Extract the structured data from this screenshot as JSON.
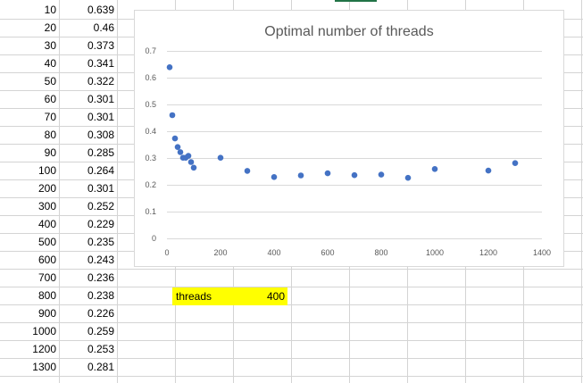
{
  "sheet": {
    "rows": [
      {
        "threads": "10",
        "value": "0.639"
      },
      {
        "threads": "20",
        "value": "0.46"
      },
      {
        "threads": "30",
        "value": "0.373"
      },
      {
        "threads": "40",
        "value": "0.341"
      },
      {
        "threads": "50",
        "value": "0.322"
      },
      {
        "threads": "60",
        "value": "0.301"
      },
      {
        "threads": "70",
        "value": "0.301"
      },
      {
        "threads": "80",
        "value": "0.308"
      },
      {
        "threads": "90",
        "value": "0.285"
      },
      {
        "threads": "100",
        "value": "0.264"
      },
      {
        "threads": "200",
        "value": "0.301"
      },
      {
        "threads": "300",
        "value": "0.252"
      },
      {
        "threads": "400",
        "value": "0.229"
      },
      {
        "threads": "500",
        "value": "0.235"
      },
      {
        "threads": "600",
        "value": "0.243"
      },
      {
        "threads": "700",
        "value": "0.236"
      },
      {
        "threads": "800",
        "value": "0.238"
      },
      {
        "threads": "900",
        "value": "0.226"
      },
      {
        "threads": "1000",
        "value": "0.259"
      },
      {
        "threads": "1200",
        "value": "0.253"
      },
      {
        "threads": "1300",
        "value": "0.281"
      }
    ],
    "highlight": {
      "label": "threads",
      "value": "400",
      "color": "#ffff00"
    },
    "selection_color": "#217346",
    "gridline_color": "#d4d4d4"
  },
  "chart_data": {
    "type": "scatter",
    "title": "Optimal number of threads",
    "xlabel": "",
    "ylabel": "",
    "xlim": [
      0,
      1400
    ],
    "ylim": [
      0,
      0.7
    ],
    "xticks": [
      "0",
      "200",
      "400",
      "600",
      "800",
      "1000",
      "1200",
      "1400"
    ],
    "yticks": [
      "0",
      "0.1",
      "0.2",
      "0.3",
      "0.4",
      "0.5",
      "0.6",
      "0.7"
    ],
    "grid": true,
    "legend": "none",
    "marker_color": "#4472c4",
    "x": [
      10,
      20,
      30,
      40,
      50,
      60,
      70,
      80,
      90,
      100,
      200,
      300,
      400,
      500,
      600,
      700,
      800,
      900,
      1000,
      1200,
      1300
    ],
    "y": [
      0.639,
      0.46,
      0.373,
      0.341,
      0.322,
      0.301,
      0.301,
      0.308,
      0.285,
      0.264,
      0.301,
      0.252,
      0.229,
      0.235,
      0.243,
      0.236,
      0.238,
      0.226,
      0.259,
      0.253,
      0.281
    ]
  }
}
